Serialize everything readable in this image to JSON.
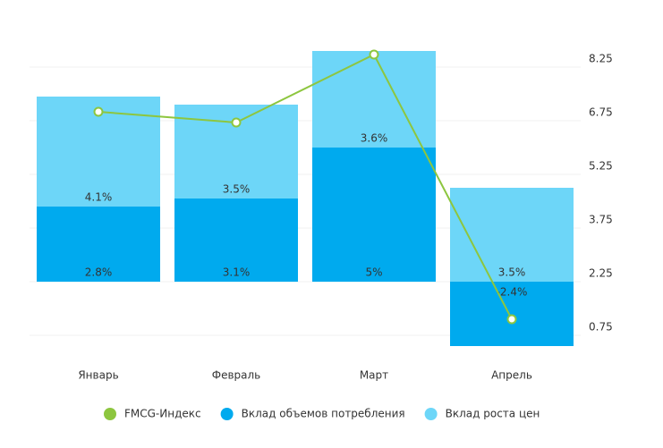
{
  "chart_data": {
    "type": "bar",
    "categories": [
      "Январь",
      "Февраль",
      "Март",
      "Апрель"
    ],
    "series": [
      {
        "name": "Вклад объемов потребления",
        "color": "#00aaee",
        "values": [
          2.8,
          3.1,
          5,
          -2.4
        ],
        "value_labels": [
          "2.8%",
          "3.1%",
          "5%",
          "-2.4%"
        ]
      },
      {
        "name": "Вклад роста цен",
        "color": "#6dd6f8",
        "values": [
          4.1,
          3.5,
          3.6,
          3.5
        ],
        "value_labels": [
          "4.1%",
          "3.5%",
          "3.6%",
          "3.5%"
        ]
      },
      {
        "name": "FMCG-Индекс",
        "color": "#8dc63f",
        "type": "line",
        "axis": "y2",
        "values": [
          7.0,
          6.7,
          8.6,
          1.2
        ]
      }
    ],
    "stacked": true,
    "ylim": [
      -2,
      8
    ],
    "y2lim": [
      0.75,
      8.25
    ],
    "y2ticks": [
      0.75,
      2.25,
      3.75,
      5.25,
      6.75,
      8.25
    ],
    "grid": true,
    "legend": "bottom"
  }
}
